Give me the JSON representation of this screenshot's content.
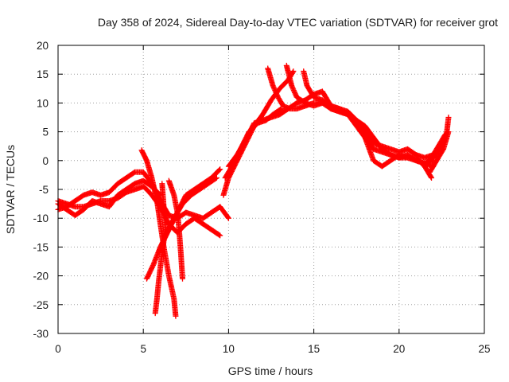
{
  "chart_data": {
    "type": "scatter",
    "title": "Day 358 of 2024, Sidereal Day-to-day VTEC variation (SDTVAR) for receiver grot",
    "xlabel": "GPS time / hours",
    "ylabel": "SDTVAR / TECUs",
    "xlim": [
      0,
      25
    ],
    "ylim": [
      -30,
      20
    ],
    "xticks": [
      0,
      5,
      10,
      15,
      20,
      25
    ],
    "yticks": [
      -30,
      -25,
      -20,
      -15,
      -10,
      -5,
      0,
      5,
      10,
      15,
      20
    ],
    "grid": true,
    "marker": "plus",
    "color": "#ff0000",
    "series": [
      {
        "name": "arc-1",
        "points": [
          [
            0,
            -8.5
          ],
          [
            0.5,
            -8
          ],
          [
            1,
            -7
          ],
          [
            1.5,
            -6
          ],
          [
            2,
            -5.5
          ],
          [
            2.5,
            -6
          ],
          [
            3,
            -5.5
          ],
          [
            3.5,
            -4
          ],
          [
            4,
            -3
          ],
          [
            4.5,
            -2
          ],
          [
            5,
            -2
          ],
          [
            5.5,
            -4
          ],
          [
            6,
            -7
          ],
          [
            6.5,
            -9.5
          ],
          [
            7,
            -10
          ],
          [
            7.5,
            -9
          ],
          [
            8,
            -9.5
          ],
          [
            8.5,
            -10
          ],
          [
            9,
            -9
          ],
          [
            9.5,
            -8
          ],
          [
            10,
            -10
          ]
        ]
      },
      {
        "name": "arc-2",
        "points": [
          [
            0,
            -7
          ],
          [
            0.5,
            -7.5
          ],
          [
            1,
            -8
          ],
          [
            1.5,
            -8
          ],
          [
            2,
            -7.5
          ],
          [
            2.5,
            -7
          ],
          [
            3,
            -7
          ],
          [
            3.5,
            -6.5
          ],
          [
            4,
            -5.5
          ],
          [
            4.5,
            -5
          ],
          [
            5,
            -4.5
          ],
          [
            5.2,
            -5
          ],
          [
            5.5,
            -6
          ],
          [
            6,
            -8
          ],
          [
            6.5,
            -11
          ],
          [
            7,
            -12.5
          ],
          [
            7.5,
            -11
          ],
          [
            8,
            -10
          ],
          [
            8.5,
            -11
          ],
          [
            9,
            -12
          ],
          [
            9.5,
            -13
          ]
        ]
      },
      {
        "name": "arc-3",
        "points": [
          [
            0,
            -7.5
          ],
          [
            0.5,
            -8.5
          ],
          [
            1,
            -9.5
          ],
          [
            1.5,
            -8.5
          ],
          [
            2,
            -7
          ],
          [
            2.5,
            -7.5
          ],
          [
            3,
            -8
          ],
          [
            3.5,
            -6
          ],
          [
            4,
            -5
          ],
          [
            4.5,
            -4
          ],
          [
            5,
            -3.5
          ],
          [
            5.5,
            -4.5
          ],
          [
            6,
            -6
          ]
        ]
      },
      {
        "name": "arc-4",
        "points": [
          [
            4.9,
            1.8
          ],
          [
            5.2,
            0
          ],
          [
            5.5,
            -3
          ],
          [
            5.8,
            -7
          ],
          [
            6,
            -11
          ],
          [
            6.2,
            -15
          ],
          [
            6.5,
            -20
          ],
          [
            6.8,
            -24
          ],
          [
            6.9,
            -27
          ]
        ]
      },
      {
        "name": "arc-5",
        "points": [
          [
            6.1,
            -4
          ],
          [
            6.2,
            -8
          ],
          [
            6.3,
            -12
          ],
          [
            6.1,
            -16
          ],
          [
            5.9,
            -21
          ],
          [
            5.8,
            -24
          ],
          [
            5.7,
            -26.5
          ]
        ]
      },
      {
        "name": "arc-6",
        "points": [
          [
            6.5,
            -3.5
          ],
          [
            6.8,
            -6
          ],
          [
            7,
            -9
          ],
          [
            7.1,
            -12
          ],
          [
            7.2,
            -16
          ],
          [
            7.3,
            -20.5
          ]
        ]
      },
      {
        "name": "arc-7",
        "points": [
          [
            5.2,
            -20.5
          ],
          [
            5.6,
            -18
          ],
          [
            6,
            -15
          ],
          [
            6.5,
            -12
          ],
          [
            7,
            -9
          ],
          [
            7.5,
            -6
          ],
          [
            8,
            -5
          ],
          [
            8.5,
            -4
          ],
          [
            9,
            -3
          ],
          [
            9.5,
            -1.5
          ]
        ]
      },
      {
        "name": "arc-8",
        "points": [
          [
            5.9,
            -16
          ],
          [
            6.3,
            -13
          ],
          [
            6.8,
            -10
          ],
          [
            7.3,
            -7.5
          ],
          [
            7.8,
            -6
          ],
          [
            8.3,
            -5
          ],
          [
            8.8,
            -4
          ],
          [
            9.3,
            -3
          ]
        ]
      },
      {
        "name": "arc-9",
        "points": [
          [
            9.7,
            -6
          ],
          [
            10,
            -3
          ],
          [
            10.5,
            0
          ],
          [
            11,
            3
          ],
          [
            11.5,
            6
          ],
          [
            12,
            8
          ],
          [
            12.5,
            10.5
          ],
          [
            13,
            12.5
          ],
          [
            13.5,
            14
          ],
          [
            13.8,
            15.5
          ]
        ]
      },
      {
        "name": "arc-10",
        "points": [
          [
            9.8,
            -3
          ],
          [
            10.2,
            -1
          ],
          [
            10.7,
            2
          ],
          [
            11.2,
            5
          ],
          [
            11.7,
            6.5
          ],
          [
            12.2,
            7
          ],
          [
            12.6,
            8
          ],
          [
            13.1,
            9
          ]
        ]
      },
      {
        "name": "arc-11",
        "points": [
          [
            10,
            -1
          ],
          [
            10.5,
            1
          ],
          [
            11,
            3.5
          ],
          [
            11.5,
            6.5
          ],
          [
            12,
            7
          ],
          [
            12.5,
            7.5
          ],
          [
            13,
            8
          ],
          [
            13.5,
            9
          ],
          [
            14,
            10
          ],
          [
            14.5,
            10.5
          ],
          [
            15,
            11.5
          ],
          [
            15.5,
            12
          ],
          [
            16,
            9.5
          ],
          [
            16.5,
            9
          ],
          [
            17,
            8.5
          ],
          [
            17.5,
            7
          ],
          [
            18,
            6
          ],
          [
            18.5,
            4
          ],
          [
            19,
            2
          ],
          [
            19.5,
            1
          ],
          [
            20,
            0.5
          ],
          [
            20.5,
            0.5
          ],
          [
            21,
            0
          ],
          [
            21.5,
            -0.5
          ],
          [
            22,
            -1
          ]
        ]
      },
      {
        "name": "arc-12",
        "points": [
          [
            12.3,
            16
          ],
          [
            12.6,
            13
          ],
          [
            12.9,
            11
          ],
          [
            13.2,
            9.5
          ],
          [
            13.6,
            9
          ],
          [
            14,
            9
          ],
          [
            14.5,
            9.5
          ],
          [
            15,
            10
          ],
          [
            15.5,
            10
          ],
          [
            16,
            9
          ],
          [
            16.5,
            8.5
          ],
          [
            17,
            8
          ],
          [
            17.5,
            6
          ],
          [
            18,
            4
          ],
          [
            18.5,
            2
          ],
          [
            19,
            1.5
          ],
          [
            19.5,
            1
          ],
          [
            20,
            0.5
          ],
          [
            20.5,
            1
          ],
          [
            21,
            0
          ],
          [
            21.5,
            -0.5
          ],
          [
            22,
            0
          ]
        ]
      },
      {
        "name": "arc-13",
        "points": [
          [
            13.4,
            16.5
          ],
          [
            13.7,
            13
          ],
          [
            14,
            11
          ],
          [
            14.5,
            10
          ],
          [
            15,
            9.5
          ],
          [
            15.5,
            10
          ],
          [
            16,
            9.5
          ],
          [
            16.5,
            9
          ],
          [
            17,
            8
          ],
          [
            17.5,
            7
          ],
          [
            18,
            5
          ],
          [
            18.5,
            3
          ],
          [
            19,
            2.5
          ],
          [
            19.5,
            2
          ],
          [
            20,
            1.5
          ],
          [
            20.5,
            2
          ],
          [
            21,
            1
          ],
          [
            21.5,
            0.5
          ],
          [
            22,
            1
          ]
        ]
      },
      {
        "name": "arc-14",
        "points": [
          [
            14.4,
            15.5
          ],
          [
            14.6,
            13
          ],
          [
            15,
            11
          ],
          [
            15.5,
            10.5
          ],
          [
            16,
            9
          ],
          [
            16.5,
            8.5
          ],
          [
            17,
            8
          ],
          [
            17.5,
            6.5
          ],
          [
            18,
            4
          ],
          [
            18.5,
            0
          ],
          [
            19,
            -1
          ],
          [
            19.5,
            0
          ],
          [
            20,
            1
          ],
          [
            20.5,
            0.5
          ],
          [
            21,
            0.5
          ],
          [
            21.5,
            -1
          ],
          [
            21.9,
            -3
          ]
        ]
      },
      {
        "name": "arc-15",
        "points": [
          [
            21.5,
            -1
          ],
          [
            22,
            0.5
          ],
          [
            22.5,
            2.5
          ],
          [
            22.8,
            5
          ],
          [
            22.9,
            7.5
          ]
        ]
      },
      {
        "name": "arc-16",
        "points": [
          [
            21.8,
            -2
          ],
          [
            22.2,
            0
          ],
          [
            22.6,
            2
          ],
          [
            22.9,
            5
          ]
        ]
      },
      {
        "name": "arc-17",
        "points": [
          [
            21.6,
            -0.5
          ],
          [
            22,
            1
          ],
          [
            22.4,
            3
          ],
          [
            22.7,
            4.5
          ]
        ]
      }
    ]
  }
}
